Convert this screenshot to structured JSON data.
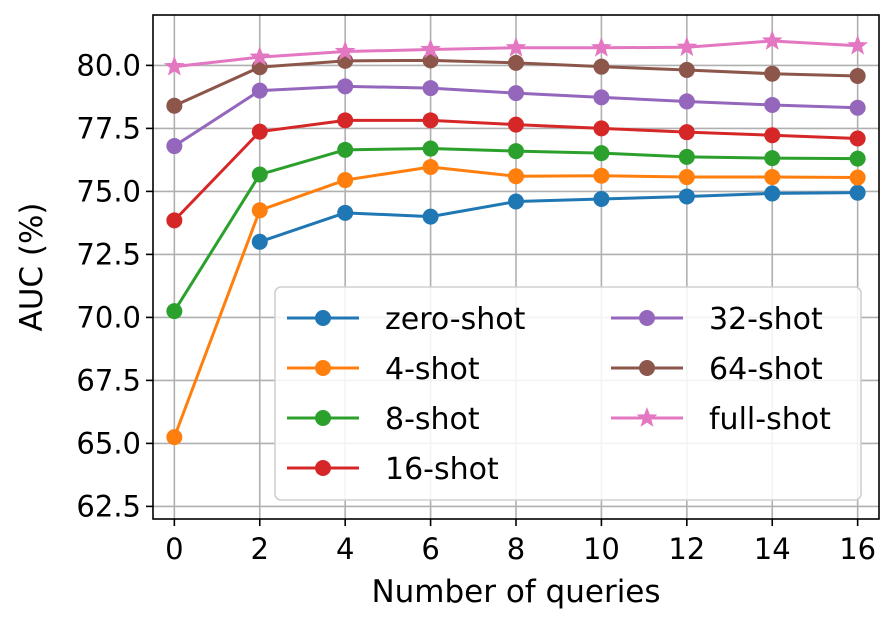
{
  "chart_data": {
    "type": "line",
    "title": "",
    "xlabel": "Number of queries",
    "ylabel": "AUC (%)",
    "xlim": [
      -0.5,
      16.5
    ],
    "ylim": [
      62.0,
      82.0
    ],
    "x_ticks": [
      0,
      2,
      4,
      6,
      8,
      10,
      12,
      14,
      16
    ],
    "x_tick_labels": [
      "0",
      "2",
      "4",
      "6",
      "8",
      "10",
      "12",
      "14",
      "16"
    ],
    "y_ticks": [
      62.5,
      65.0,
      67.5,
      70.0,
      72.5,
      75.0,
      77.5,
      80.0
    ],
    "y_tick_labels": [
      "62.5",
      "65.0",
      "67.5",
      "70.0",
      "72.5",
      "75.0",
      "77.5",
      "80.0"
    ],
    "grid": true,
    "legend_position": "lower-right",
    "legend_columns": 2,
    "series": [
      {
        "name": "zero-shot",
        "color": "#1f77b4",
        "marker": "circle",
        "x": [
          2,
          4,
          6,
          8,
          10,
          12,
          14,
          16
        ],
        "values": [
          73.0,
          74.15,
          74.0,
          74.6,
          74.7,
          74.8,
          74.92,
          74.95
        ]
      },
      {
        "name": "4-shot",
        "color": "#ff7f0e",
        "marker": "circle",
        "x": [
          0,
          2,
          4,
          6,
          8,
          10,
          12,
          14,
          16
        ],
        "values": [
          65.25,
          74.25,
          75.45,
          75.97,
          75.6,
          75.62,
          75.57,
          75.57,
          75.55
        ]
      },
      {
        "name": "8-shot",
        "color": "#2ca02c",
        "marker": "circle",
        "x": [
          0,
          2,
          4,
          6,
          8,
          10,
          12,
          14,
          16
        ],
        "values": [
          70.25,
          75.67,
          76.65,
          76.7,
          76.6,
          76.52,
          76.37,
          76.32,
          76.3
        ]
      },
      {
        "name": "16-shot",
        "color": "#d62728",
        "marker": "circle",
        "x": [
          0,
          2,
          4,
          6,
          8,
          10,
          12,
          14,
          16
        ],
        "values": [
          73.85,
          77.37,
          77.82,
          77.82,
          77.65,
          77.5,
          77.35,
          77.23,
          77.1
        ]
      },
      {
        "name": "32-shot",
        "color": "#9467bd",
        "marker": "circle",
        "x": [
          0,
          2,
          4,
          6,
          8,
          10,
          12,
          14,
          16
        ],
        "values": [
          76.8,
          79.0,
          79.17,
          79.1,
          78.9,
          78.73,
          78.57,
          78.43,
          78.32
        ]
      },
      {
        "name": "64-shot",
        "color": "#8c564b",
        "marker": "circle",
        "x": [
          0,
          2,
          4,
          6,
          8,
          10,
          12,
          14,
          16
        ],
        "values": [
          78.4,
          79.93,
          80.18,
          80.2,
          80.1,
          79.95,
          79.82,
          79.67,
          79.58
        ]
      },
      {
        "name": "full-shot",
        "color": "#e377c2",
        "marker": "star",
        "x": [
          0,
          2,
          4,
          6,
          8,
          10,
          12,
          14,
          16
        ],
        "values": [
          79.95,
          80.33,
          80.55,
          80.63,
          80.7,
          80.7,
          80.72,
          80.97,
          80.78
        ]
      }
    ]
  }
}
